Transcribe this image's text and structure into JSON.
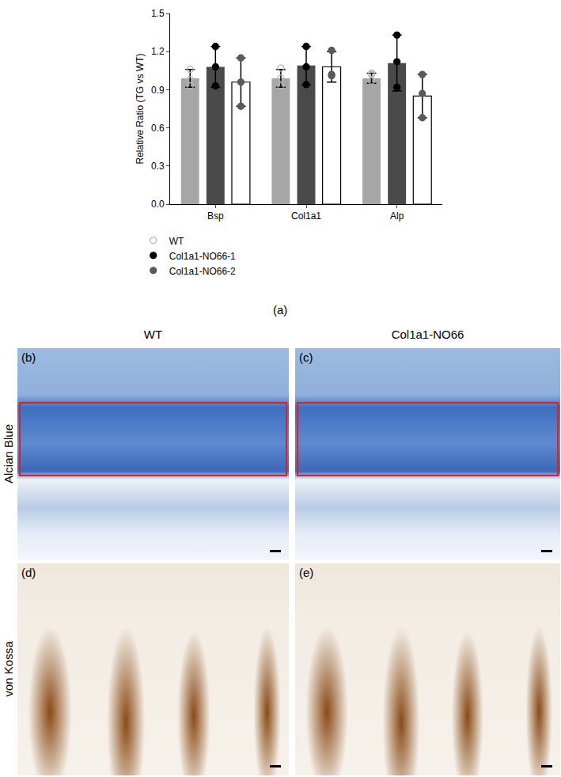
{
  "chart_data": {
    "type": "bar",
    "y_label": "Relative Ratio (TG vs WT)",
    "categories": [
      "Bsp",
      "Col1a1",
      "Alp"
    ],
    "series": [
      {
        "name": "WT",
        "color": "#b3b3b3",
        "marker": "circle-open",
        "values": [
          0.99,
          0.99,
          0.99
        ],
        "error": [
          0.07,
          0.07,
          0.04
        ],
        "points": [
          [
            1.06,
            0.98,
            0.93
          ],
          [
            1.07,
            0.99,
            0.93
          ],
          [
            1.03,
            1.02,
            0.97
          ]
        ]
      },
      {
        "name": "Col1a1-NO66-1",
        "color": "#000000",
        "marker": "circle",
        "values": [
          1.08,
          1.09,
          1.11
        ],
        "error": [
          0.16,
          0.15,
          0.22
        ],
        "points": [
          [
            1.24,
            1.08,
            0.93
          ],
          [
            1.24,
            1.08,
            0.94
          ],
          [
            1.33,
            1.12,
            0.92
          ]
        ]
      },
      {
        "name": "Col1a1-NO66-2",
        "color": "#5a5a5a",
        "marker": "circle",
        "values": [
          0.96,
          1.08,
          0.85
        ],
        "error": [
          0.19,
          0.12,
          0.17
        ],
        "points": [
          [
            1.15,
            0.96,
            0.77
          ],
          [
            1.21,
            1.02,
            1.01
          ],
          [
            1.02,
            0.87,
            0.68
          ]
        ]
      }
    ],
    "ylim": [
      0,
      1.5
    ],
    "yticks": [
      {
        "value": 0,
        "label": "0.0"
      },
      0.3,
      0.6,
      0.9,
      1.2,
      1.5
    ],
    "legend": "bottom-left",
    "grid": false
  },
  "figure": {
    "chart_label": "(a)",
    "columns": [
      "WT",
      "Col1a1-NO66"
    ],
    "rows": [
      {
        "label": "Alcian Blue",
        "panels": [
          "(b)",
          "(c)"
        ]
      },
      {
        "label": "von Kossa",
        "panels": [
          "(d)",
          "(e)"
        ]
      }
    ]
  }
}
